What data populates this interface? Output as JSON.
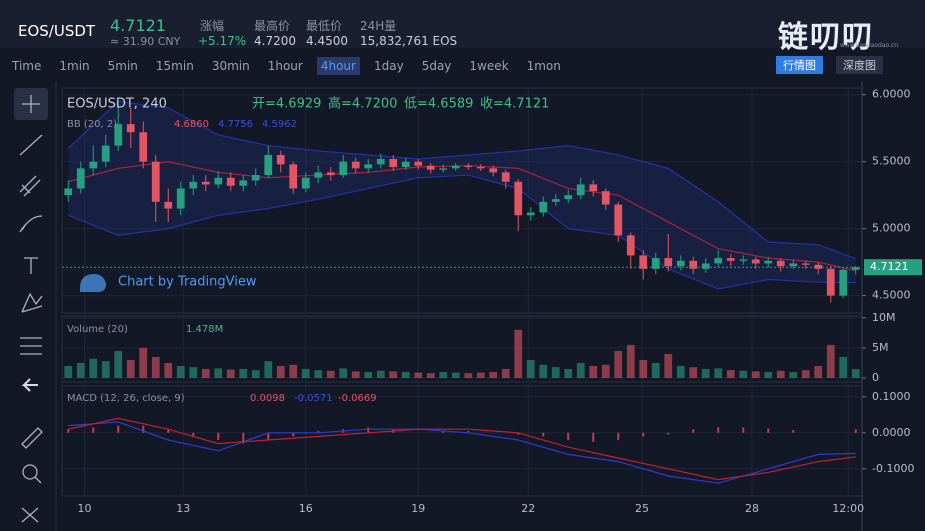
{
  "header": {
    "pair": "EOS/USDT",
    "price": "4.7121",
    "cny": "≈ 31.90 CNY",
    "change_label": "涨幅",
    "change": "+5.17%",
    "high_label": "最高价",
    "high": "4.7200",
    "low_label": "最低价",
    "low": "4.4500",
    "vol_label": "24H量",
    "volume": "15,832,761 EOS"
  },
  "brand": {
    "logo": "链叨叨",
    "site": "www.liandaodao.cn",
    "tabs": [
      "行情图",
      "深度图"
    ],
    "active_tab": "行情图"
  },
  "timeframes": [
    "Time",
    "1min",
    "5min",
    "15min",
    "30min",
    "1hour",
    "4hour",
    "1day",
    "5day",
    "1week",
    "1mon"
  ],
  "active_timeframe": "4hour",
  "chart": {
    "type": "candlestick",
    "title": "EOS/USDT, 240",
    "ohlc_legend": [
      "开=4.6929",
      "高=4.7200",
      "低=4.6589",
      "收=4.7121"
    ],
    "bb_label": "BB (20, 2)",
    "bb_values": [
      "4.6860",
      "4.7756",
      "4.5962"
    ],
    "watermark": "Chart by TradingView",
    "last_price": "4.7121",
    "volume_label": "Volume (20)",
    "volume_value": "1.478M",
    "macd_label": "MACD (12, 26, close, 9)",
    "macd_values": [
      "0.0098",
      "-0.0571",
      "-0.0669"
    ],
    "up_color": "#26a07f",
    "down_color": "#e25563",
    "open": [
      5.25,
      5.3,
      5.45,
      5.5,
      5.62,
      5.78,
      5.72,
      5.5,
      5.2,
      5.15,
      5.3,
      5.35,
      5.33,
      5.38,
      5.32,
      5.36,
      5.4,
      5.55,
      5.48,
      5.3,
      5.38,
      5.42,
      5.4,
      5.5,
      5.45,
      5.48,
      5.52,
      5.46,
      5.5,
      5.47,
      5.44,
      5.45,
      5.47,
      5.46,
      5.45,
      5.42,
      5.35,
      5.1,
      5.12,
      5.2,
      5.22,
      5.25,
      5.33,
      5.28,
      5.18,
      4.95,
      4.8,
      4.7,
      4.78,
      4.72,
      4.76,
      4.7,
      4.74,
      4.78,
      4.76,
      4.77,
      4.74,
      4.76,
      4.72,
      4.74,
      4.73,
      4.7,
      4.5,
      4.6929
    ],
    "high": [
      5.36,
      5.5,
      5.62,
      5.7,
      5.92,
      5.9,
      5.8,
      5.55,
      5.3,
      5.35,
      5.4,
      5.4,
      5.43,
      5.42,
      5.4,
      5.45,
      5.62,
      5.58,
      5.5,
      5.42,
      5.47,
      5.46,
      5.55,
      5.53,
      5.52,
      5.56,
      5.55,
      5.53,
      5.52,
      5.49,
      5.48,
      5.49,
      5.49,
      5.48,
      5.47,
      5.44,
      5.37,
      5.16,
      5.24,
      5.26,
      5.29,
      5.38,
      5.36,
      5.3,
      5.2,
      4.97,
      4.84,
      4.82,
      4.96,
      4.8,
      4.79,
      4.78,
      4.84,
      4.81,
      4.8,
      4.79,
      4.79,
      4.78,
      4.77,
      4.76,
      4.75,
      4.72,
      4.7,
      4.72
    ],
    "low": [
      5.2,
      5.26,
      5.4,
      5.46,
      5.58,
      5.6,
      5.45,
      5.05,
      5.05,
      5.1,
      5.25,
      5.28,
      5.3,
      5.28,
      5.28,
      5.32,
      5.38,
      5.42,
      5.26,
      5.27,
      5.34,
      5.36,
      5.38,
      5.41,
      5.42,
      5.45,
      5.43,
      5.44,
      5.44,
      5.41,
      5.42,
      5.43,
      5.44,
      5.43,
      5.39,
      5.3,
      4.98,
      5.06,
      5.09,
      5.17,
      5.19,
      5.22,
      5.24,
      5.14,
      4.9,
      4.7,
      4.62,
      4.66,
      4.68,
      4.69,
      4.66,
      4.67,
      4.71,
      4.72,
      4.73,
      4.7,
      4.71,
      4.68,
      4.7,
      4.7,
      4.66,
      4.45,
      4.48,
      4.6589
    ],
    "close": [
      5.3,
      5.45,
      5.5,
      5.62,
      5.78,
      5.72,
      5.5,
      5.2,
      5.15,
      5.3,
      5.35,
      5.33,
      5.38,
      5.32,
      5.36,
      5.4,
      5.55,
      5.48,
      5.3,
      5.38,
      5.42,
      5.4,
      5.5,
      5.45,
      5.48,
      5.52,
      5.46,
      5.5,
      5.47,
      5.44,
      5.45,
      5.47,
      5.46,
      5.45,
      5.42,
      5.35,
      5.1,
      5.12,
      5.2,
      5.22,
      5.25,
      5.33,
      5.28,
      5.18,
      4.95,
      4.8,
      4.7,
      4.78,
      4.72,
      4.76,
      4.7,
      4.74,
      4.78,
      4.76,
      4.77,
      4.74,
      4.76,
      4.72,
      4.74,
      4.73,
      4.7,
      4.5,
      4.6929,
      4.7121
    ],
    "volume": [
      2.0,
      2.5,
      3.2,
      2.8,
      4.5,
      3.0,
      5.0,
      3.5,
      2.5,
      2.0,
      1.8,
      1.5,
      1.6,
      1.4,
      1.5,
      1.3,
      2.8,
      2.0,
      2.2,
      1.5,
      1.3,
      1.2,
      1.6,
      1.1,
      1.0,
      1.2,
      1.1,
      1.0,
      0.9,
      0.8,
      1.0,
      0.9,
      0.8,
      0.9,
      1.0,
      1.5,
      8.0,
      3.0,
      2.2,
      1.8,
      1.5,
      2.5,
      2.0,
      2.2,
      4.5,
      5.5,
      3.0,
      2.5,
      4.0,
      2.0,
      1.8,
      1.5,
      1.6,
      1.3,
      1.2,
      1.1,
      1.0,
      1.2,
      1.0,
      1.3,
      2.0,
      5.5,
      3.5,
      1.478
    ],
    "line_x": [
      0,
      4,
      8,
      12,
      16,
      20,
      24,
      28,
      32,
      36,
      40,
      44,
      48,
      52,
      56,
      60,
      63
    ],
    "bb_mid": [
      5.35,
      5.45,
      5.5,
      5.42,
      5.38,
      5.4,
      5.42,
      5.46,
      5.47,
      5.45,
      5.3,
      5.25,
      5.05,
      4.85,
      4.78,
      4.75,
      4.686
    ],
    "bb_upper": [
      5.6,
      5.95,
      5.9,
      5.7,
      5.62,
      5.58,
      5.55,
      5.52,
      5.55,
      5.58,
      5.62,
      5.55,
      5.45,
      5.2,
      4.9,
      4.88,
      4.7756
    ],
    "bb_lower": [
      5.1,
      4.95,
      5.0,
      5.1,
      5.15,
      5.22,
      5.3,
      5.38,
      5.4,
      5.3,
      5.0,
      4.95,
      4.7,
      4.55,
      4.62,
      4.6,
      4.5962
    ],
    "macd": [
      0.02,
      0.03,
      -0.02,
      -0.05,
      0.0,
      0.0,
      0.01,
      0.01,
      0.0,
      -0.02,
      -0.06,
      -0.08,
      -0.12,
      -0.14,
      -0.1,
      -0.06,
      -0.0571
    ],
    "signal": [
      0.01,
      0.04,
      0.01,
      -0.03,
      -0.02,
      -0.01,
      0.0,
      0.01,
      0.01,
      0.0,
      -0.04,
      -0.07,
      -0.1,
      -0.13,
      -0.11,
      -0.08,
      -0.0669
    ],
    "hist_x": [
      0,
      2,
      4,
      6,
      8,
      10,
      12,
      14,
      16,
      18,
      20,
      22,
      24,
      26,
      28,
      30,
      32,
      34,
      36,
      38,
      40,
      42,
      44,
      46,
      48,
      50,
      52,
      54,
      56,
      58,
      60,
      63
    ],
    "hist": [
      0.01,
      0.015,
      0.02,
      0.02,
      0.01,
      -0.01,
      -0.02,
      -0.03,
      -0.02,
      -0.01,
      0.005,
      0.01,
      0.015,
      0.01,
      0.0,
      0.005,
      0.005,
      0.0,
      -0.005,
      -0.01,
      -0.02,
      -0.025,
      -0.02,
      -0.01,
      -0.005,
      0.01,
      0.015,
      0.015,
      0.012,
      0.008,
      0.0,
      0.0098
    ],
    "ylim": [
      4.4,
      6.05
    ],
    "yticks": [
      {
        "value": 6,
        "label": "6.0000"
      },
      {
        "value": 5.5,
        "label": "5.5000"
      },
      {
        "value": 5,
        "label": "5.0000"
      },
      {
        "value": 4.5,
        "label": "4.5000"
      }
    ],
    "vol_lim": [
      0,
      10.3
    ],
    "vol_ticks": [
      {
        "value": 10,
        "label": "10M"
      },
      {
        "value": 5,
        "label": "5M"
      },
      0
    ],
    "macd_lim": [
      -0.17,
      0.13
    ],
    "macd_ticks": [
      {
        "value": 0.1,
        "label": "0.1000"
      },
      {
        "value": 0,
        "label": "0.0000"
      },
      {
        "value": -0.1,
        "label": "-0.1000"
      }
    ],
    "xlim": [
      -0.5,
      63.5
    ],
    "xticks": [
      {
        "value": 1.3,
        "label": "10"
      },
      {
        "value": 9.2,
        "label": "13"
      },
      {
        "value": 19,
        "label": "16"
      },
      {
        "value": 28,
        "label": "19"
      },
      {
        "value": 36.8,
        "label": "22"
      },
      {
        "value": 45.9,
        "label": "25"
      },
      {
        "value": 54.7,
        "label": "28"
      },
      {
        "value": 62.4,
        "label": "12:00"
      }
    ]
  }
}
